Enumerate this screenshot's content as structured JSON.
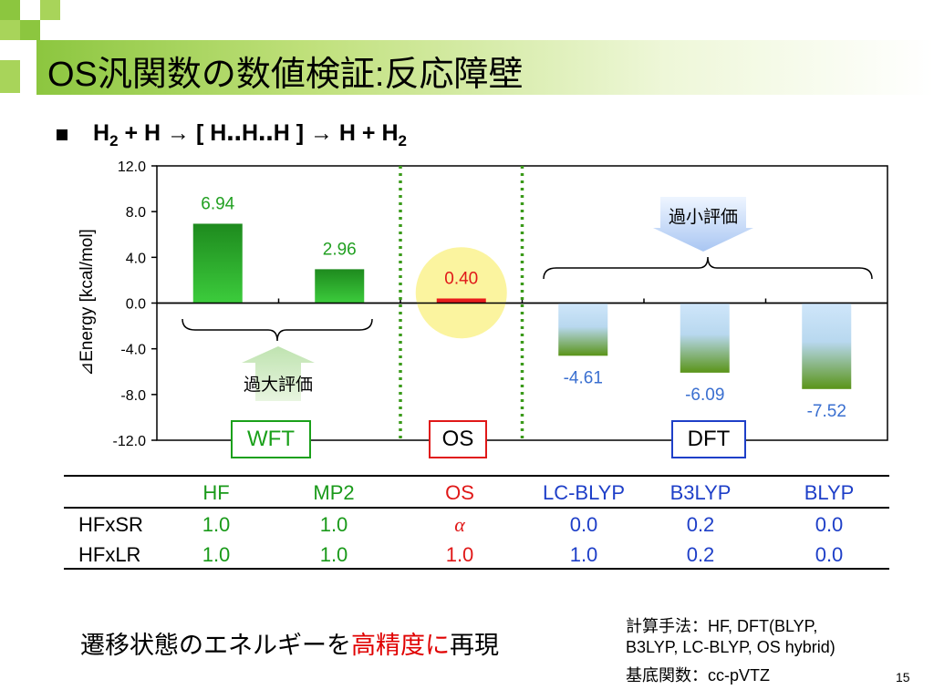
{
  "title": "OS汎関数の数値検証:反応障壁",
  "equation": {
    "h2_left": "H",
    "sub_left": "2",
    "middle": "+ H → [ H‥H‥H ] → H + H",
    "sub_right": "2"
  },
  "chart_data": {
    "type": "bar",
    "categories": [
      "HF",
      "MP2",
      "OS",
      "LC-BLYP",
      "B3LYP",
      "BLYP"
    ],
    "values": [
      6.94,
      2.96,
      0.4,
      -4.61,
      -6.09,
      -7.52
    ],
    "value_labels": [
      "6.94",
      "2.96",
      "0.40",
      "-4.61",
      "-6.09",
      "-7.52"
    ],
    "ylabel": "⊿Energy [kcal/mol]",
    "ylim": [
      -12.0,
      12.0
    ],
    "yticks": [
      "12.0",
      "8.0",
      "4.0",
      "0.0",
      "-4.0",
      "-8.0",
      "-12.0"
    ],
    "ytick_values": [
      12,
      8,
      4,
      0,
      -4,
      -8,
      -12
    ],
    "colors": [
      "#2e9e2e",
      "#2e9e2e",
      "#e81c1c",
      "#5a9e2e",
      "#5a9e2e",
      "#5a9e2e"
    ],
    "label_colors": [
      "#22a022",
      "#22a022",
      "#e01818",
      "#3a6fd0",
      "#3a6fd0",
      "#3a6fd0"
    ],
    "grid": false
  },
  "annotations": {
    "underestimate": "過小評価",
    "overestimate": "過大評価"
  },
  "groups": {
    "wft": "WFT",
    "os": "OS",
    "dft": "DFT"
  },
  "table": {
    "headers": [
      "HF",
      "MP2",
      "OS",
      "LC-BLYP",
      "B3LYP",
      "BLYP"
    ],
    "rows": [
      {
        "label": "HFxSR",
        "values": [
          "1.0",
          "1.0",
          "α",
          "0.0",
          "0.2",
          "0.0"
        ]
      },
      {
        "label": "HFxLR",
        "values": [
          "1.0",
          "1.0",
          "1.0",
          "1.0",
          "0.2",
          "0.0"
        ]
      }
    ],
    "colors": [
      "#1a9a1a",
      "#1a9a1a",
      "#e01818",
      "#1e3fc8",
      "#1e3fc8",
      "#1e3fc8"
    ]
  },
  "conclusion": {
    "part1": "遷移状態のエネルギーを",
    "part2": "高精度に",
    "part3": "再現"
  },
  "method": {
    "line1": "計算手法：HF, DFT(BLYP,",
    "line2": "B3LYP, LC-BLYP, OS hybrid)",
    "line3": "基底関数：cc-pVTZ"
  },
  "page_number": "15"
}
